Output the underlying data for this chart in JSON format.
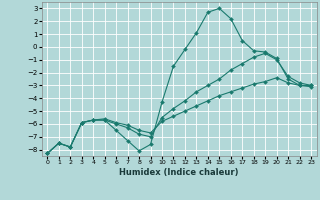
{
  "background_color": "#b2d8d8",
  "grid_color": "#ffffff",
  "line_color": "#1a7a6e",
  "xlabel": "Humidex (Indice chaleur)",
  "ylim": [
    -8.5,
    3.5
  ],
  "xlim": [
    -0.5,
    23.5
  ],
  "yticks": [
    3,
    2,
    1,
    0,
    -1,
    -2,
    -3,
    -4,
    -5,
    -6,
    -7,
    -8
  ],
  "xticks": [
    0,
    1,
    2,
    3,
    4,
    5,
    6,
    7,
    8,
    9,
    10,
    11,
    12,
    13,
    14,
    15,
    16,
    17,
    18,
    19,
    20,
    21,
    22,
    23
  ],
  "series": [
    {
      "x": [
        0,
        1,
        2,
        3,
        4,
        5,
        6,
        7,
        8,
        9,
        10,
        11,
        12,
        13,
        14,
        15,
        16,
        17,
        18,
        19,
        20,
        21,
        22,
        23
      ],
      "y": [
        -8.3,
        -7.5,
        -7.8,
        -5.9,
        -5.7,
        -5.7,
        -6.5,
        -7.3,
        -8.1,
        -7.6,
        -4.3,
        -1.5,
        -0.2,
        1.1,
        2.7,
        3.0,
        2.2,
        0.5,
        -0.3,
        -0.4,
        -0.9,
        -2.5,
        -3.0,
        -3.0
      ]
    },
    {
      "x": [
        0,
        1,
        2,
        3,
        4,
        5,
        6,
        7,
        8,
        9,
        10,
        11,
        12,
        13,
        14,
        15,
        16,
        17,
        18,
        19,
        20,
        21,
        22,
        23
      ],
      "y": [
        -8.3,
        -7.5,
        -7.8,
        -5.9,
        -5.7,
        -5.7,
        -6.0,
        -6.3,
        -6.8,
        -7.0,
        -5.5,
        -4.8,
        -4.2,
        -3.5,
        -3.0,
        -2.5,
        -1.8,
        -1.3,
        -0.8,
        -0.5,
        -1.0,
        -2.3,
        -2.8,
        -3.0
      ]
    },
    {
      "x": [
        0,
        1,
        2,
        3,
        4,
        5,
        6,
        7,
        8,
        9,
        10,
        11,
        12,
        13,
        14,
        15,
        16,
        17,
        18,
        19,
        20,
        21,
        22,
        23
      ],
      "y": [
        -8.3,
        -7.5,
        -7.8,
        -5.9,
        -5.7,
        -5.6,
        -5.9,
        -6.1,
        -6.5,
        -6.7,
        -5.8,
        -5.4,
        -5.0,
        -4.6,
        -4.2,
        -3.8,
        -3.5,
        -3.2,
        -2.9,
        -2.7,
        -2.4,
        -2.8,
        -3.0,
        -3.1
      ]
    }
  ]
}
